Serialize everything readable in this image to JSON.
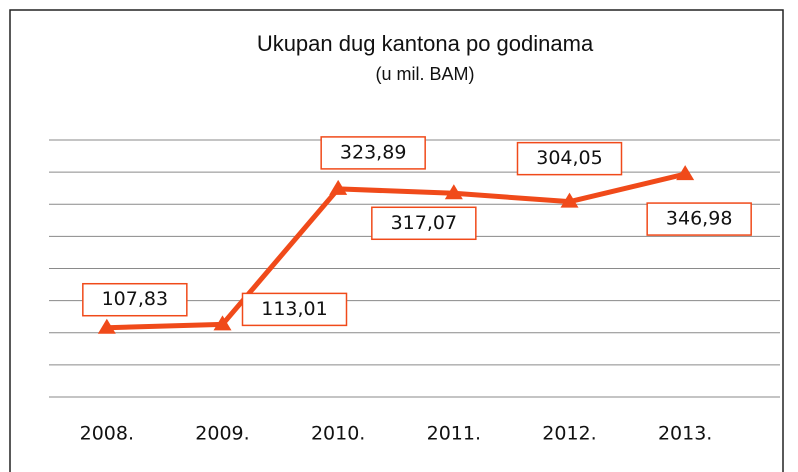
{
  "chart_data": {
    "type": "line",
    "title": "Ukupan dug kantona po godinama",
    "subtitle": "(u mil. BAM)",
    "categories": [
      "2008.",
      "2009.",
      "2010.",
      "2011.",
      "2012.",
      "2013."
    ],
    "values": [
      107.83,
      113.01,
      323.89,
      317.07,
      304.05,
      346.98
    ],
    "value_labels": [
      "107,83",
      "113,01",
      "323,89",
      "317,07",
      "304,05",
      "346,98"
    ],
    "color": "#f04a1a",
    "ylim": [
      0,
      400
    ],
    "yticks": [
      0,
      50,
      100,
      150,
      200,
      250,
      300,
      350,
      400
    ],
    "grid": true
  }
}
